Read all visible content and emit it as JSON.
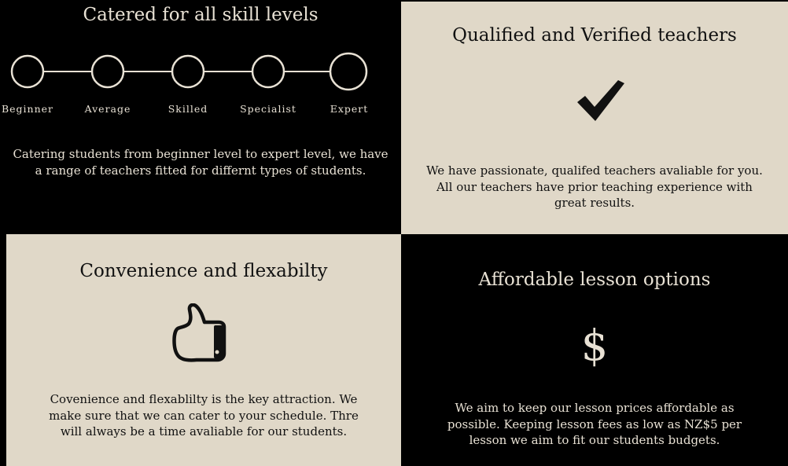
{
  "skill": {
    "title": "Catered for all skill levels",
    "levels": [
      "Beginner",
      "Average",
      "Skilled",
      "Specialist",
      "Expert"
    ],
    "text_lines": [
      "Catering students from beginner level to expert level, we have",
      "a range of teachers fitted for differnt types of students."
    ]
  },
  "qualified": {
    "title": "Qualified and Verified teachers",
    "icon": "checkmark-icon",
    "text_lines": [
      "We have passionate, qualifed teachers avaliable for you.",
      "All our teachers have prior teaching experience with",
      "great results."
    ]
  },
  "convenience": {
    "title": "Convenience and flexabilty",
    "icon": "thumbs-up-icon",
    "text_lines": [
      "Covenience and flexablilty is the key attraction. We",
      "make sure that we can cater to your schedule. Thre",
      "will always be a time avaliable for our students."
    ]
  },
  "affordable": {
    "title": "Affordable lesson options",
    "icon_symbol": "$",
    "text_lines": [
      "We aim to keep our lesson prices affordable as",
      "possible. Keeping lesson fees as low as NZ$5 per",
      "lesson we aim to fit our students budgets."
    ]
  },
  "colors": {
    "dark": "#000000",
    "light": "#e0d8c8",
    "cream_text": "#e8e1d4"
  }
}
